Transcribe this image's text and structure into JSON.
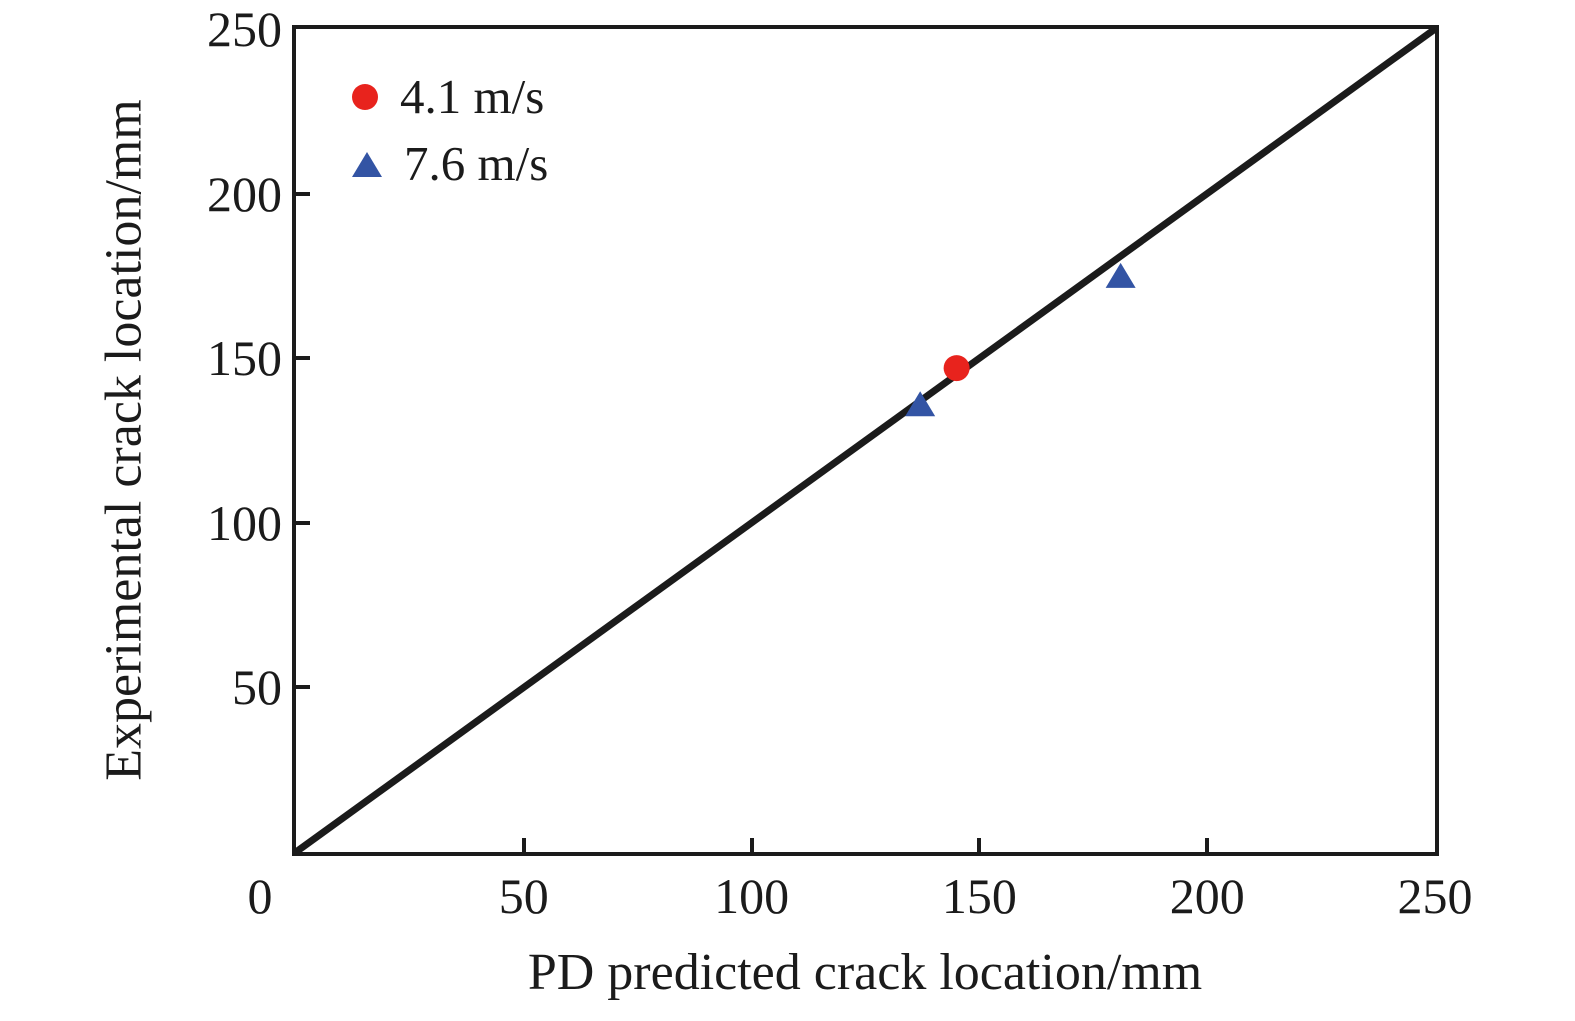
{
  "colors": {
    "axis": "#1b1b1b",
    "text": "#1b1b1b",
    "background": "#ffffff",
    "series_red": "#e8231d",
    "series_blue": "#3354a4"
  },
  "legend": {
    "entries": [
      {
        "label": "4.1 m/s",
        "marker": "circle-icon",
        "color": "#e8231d"
      },
      {
        "label": "7.6 m/s",
        "marker": "triangle-icon",
        "color": "#3354a4"
      }
    ]
  },
  "chart_data": {
    "type": "scatter",
    "title": "",
    "xlabel": "PD predicted crack location/mm",
    "ylabel": "Experimental crack location/mm",
    "xlim": [
      0,
      250
    ],
    "ylim": [
      0,
      250
    ],
    "x_ticks": [
      0,
      50,
      100,
      150,
      200,
      250
    ],
    "y_ticks": [
      50,
      100,
      150,
      200,
      250
    ],
    "grid": false,
    "legend_position": "inside top-left",
    "reference_line": {
      "type": "identity",
      "from": [
        0,
        0
      ],
      "to": [
        250,
        250
      ],
      "color": "#1b1b1b"
    },
    "series": [
      {
        "name": "4.1 m/s",
        "marker": "circle",
        "color": "#e8231d",
        "points": [
          {
            "x": 145,
            "y": 147
          }
        ]
      },
      {
        "name": "7.6 m/s",
        "marker": "triangle",
        "color": "#3354a4",
        "points": [
          {
            "x": 137,
            "y": 136
          },
          {
            "x": 181,
            "y": 175
          }
        ]
      }
    ]
  }
}
